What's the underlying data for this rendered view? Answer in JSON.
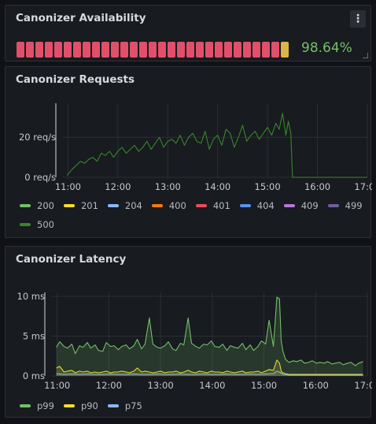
{
  "availability": {
    "title": "Canonizer Availability",
    "value_text": "98.64%",
    "value_color": "#73bf69",
    "segments_red": 28,
    "segments_yellow": 1,
    "red_color": "#e0506a",
    "yellow_color": "#d9b648",
    "menu_icon": "kebab-icon"
  },
  "requests": {
    "title": "Canonizer Requests",
    "legend": [
      {
        "label": "200",
        "color": "#73bf69"
      },
      {
        "label": "201",
        "color": "#fade2a"
      },
      {
        "label": "204",
        "color": "#8ab8ff"
      },
      {
        "label": "400",
        "color": "#ff780a"
      },
      {
        "label": "401",
        "color": "#f2495c"
      },
      {
        "label": "404",
        "color": "#5794f2"
      },
      {
        "label": "409",
        "color": "#b877d9"
      },
      {
        "label": "499",
        "color": "#705da0"
      },
      {
        "label": "500",
        "color": "#37872d"
      }
    ]
  },
  "latency": {
    "title": "Canonizer Latency",
    "legend": [
      {
        "label": "p99",
        "color": "#73bf69"
      },
      {
        "label": "p90",
        "color": "#fade2a"
      },
      {
        "label": "p75",
        "color": "#8ab8ff"
      }
    ]
  },
  "chart_data": [
    {
      "type": "line",
      "x_ticks": [
        "11:00",
        "12:00",
        "13:00",
        "14:00",
        "15:00",
        "16:00",
        "17:00"
      ],
      "y_ticks": [
        "0 req/s",
        "20 req/s"
      ],
      "xlim": [
        "10:53",
        "17:00"
      ],
      "ylim": [
        0,
        37
      ],
      "series": [
        {
          "name": "500",
          "color": "#37872d",
          "x": [
            "10:59",
            "11:05",
            "11:10",
            "11:15",
            "11:20",
            "11:25",
            "11:30",
            "11:35",
            "11:40",
            "11:45",
            "11:50",
            "11:55",
            "12:00",
            "12:05",
            "12:10",
            "12:15",
            "12:20",
            "12:25",
            "12:30",
            "12:35",
            "12:40",
            "12:45",
            "12:50",
            "12:55",
            "13:00",
            "13:05",
            "13:10",
            "13:15",
            "13:20",
            "13:25",
            "13:30",
            "13:35",
            "13:40",
            "13:45",
            "13:50",
            "13:55",
            "14:00",
            "14:05",
            "14:10",
            "14:15",
            "14:20",
            "14:25",
            "14:30",
            "14:35",
            "14:40",
            "14:45",
            "14:50",
            "14:55",
            "15:00",
            "15:05",
            "15:10",
            "15:14",
            "15:18",
            "15:22",
            "15:25",
            "15:28",
            "15:30",
            "16:00",
            "17:00"
          ],
          "y": [
            1,
            4,
            6,
            8,
            7,
            9,
            10,
            8,
            12,
            11,
            13,
            10,
            13,
            15,
            12,
            14,
            16,
            13,
            15,
            18,
            14,
            17,
            20,
            15,
            18,
            19,
            17,
            21,
            16,
            20,
            22,
            18,
            17,
            23,
            14,
            19,
            21,
            16,
            24,
            22,
            15,
            20,
            26,
            18,
            21,
            23,
            19,
            22,
            25,
            21,
            27,
            24,
            32,
            21,
            28,
            22,
            0,
            0,
            0
          ]
        }
      ]
    },
    {
      "type": "area",
      "x_ticks": [
        "11:00",
        "12:00",
        "13:00",
        "14:00",
        "15:00",
        "16:00",
        "17:00"
      ],
      "y_ticks": [
        "0 ms",
        "5 ms",
        "10 ms"
      ],
      "xlim": [
        "10:53",
        "17:00"
      ],
      "ylim": [
        0,
        10.5
      ],
      "series": [
        {
          "name": "p99",
          "color": "#73bf69",
          "x": [
            "10:59",
            "11:03",
            "11:08",
            "11:12",
            "11:17",
            "11:21",
            "11:26",
            "11:30",
            "11:35",
            "11:39",
            "11:44",
            "11:48",
            "11:53",
            "11:57",
            "12:02",
            "12:06",
            "12:11",
            "12:15",
            "12:20",
            "12:24",
            "12:29",
            "12:33",
            "12:38",
            "12:42",
            "12:47",
            "12:51",
            "12:56",
            "13:00",
            "13:05",
            "13:09",
            "13:14",
            "13:18",
            "13:23",
            "13:27",
            "13:32",
            "13:36",
            "13:41",
            "13:45",
            "13:50",
            "13:54",
            "13:59",
            "14:03",
            "14:08",
            "14:12",
            "14:17",
            "14:21",
            "14:26",
            "14:30",
            "14:35",
            "14:39",
            "14:44",
            "14:48",
            "14:53",
            "14:57",
            "15:02",
            "15:06",
            "15:11",
            "15:15",
            "15:18",
            "15:20",
            "15:22",
            "15:25",
            "15:29",
            "15:34",
            "15:38",
            "15:43",
            "15:47",
            "15:52",
            "15:56",
            "16:01",
            "16:05",
            "16:10",
            "16:14",
            "16:19",
            "16:23",
            "16:28",
            "16:32",
            "16:37",
            "16:41",
            "16:46",
            "16:50",
            "16:55"
          ],
          "y": [
            3.6,
            4.3,
            3.7,
            3.5,
            4.0,
            2.8,
            3.8,
            3.6,
            4.2,
            3.5,
            3.9,
            3.2,
            3.1,
            4.2,
            3.7,
            3.8,
            3.3,
            3.7,
            3.9,
            3.4,
            3.8,
            4.6,
            3.4,
            4.0,
            7.3,
            4.0,
            3.6,
            3.5,
            3.8,
            4.3,
            3.4,
            3.2,
            4.1,
            3.9,
            7.3,
            4.1,
            3.7,
            3.5,
            4.0,
            3.9,
            4.4,
            3.7,
            3.6,
            4.0,
            3.2,
            3.8,
            3.6,
            3.5,
            4.1,
            3.3,
            3.9,
            3.2,
            3.7,
            4.4,
            4.0,
            7.0,
            3.7,
            9.9,
            9.7,
            4.4,
            3.1,
            2.1,
            1.7,
            1.9,
            1.8,
            2.0,
            1.6,
            1.7,
            1.9,
            1.6,
            1.7,
            1.6,
            1.8,
            1.5,
            1.6,
            1.7,
            1.4,
            1.6,
            1.7,
            1.3,
            1.6,
            1.8
          ]
        },
        {
          "name": "p90",
          "color": "#fade2a",
          "x": [
            "10:59",
            "11:03",
            "11:08",
            "11:12",
            "11:17",
            "11:21",
            "11:26",
            "11:30",
            "11:35",
            "11:39",
            "11:44",
            "11:48",
            "11:53",
            "11:57",
            "12:02",
            "12:06",
            "12:11",
            "12:15",
            "12:20",
            "12:24",
            "12:29",
            "12:33",
            "12:38",
            "12:42",
            "12:47",
            "12:51",
            "12:56",
            "13:00",
            "13:05",
            "13:09",
            "13:14",
            "13:18",
            "13:23",
            "13:27",
            "13:32",
            "13:36",
            "13:41",
            "13:45",
            "13:50",
            "13:54",
            "13:59",
            "14:03",
            "14:08",
            "14:12",
            "14:17",
            "14:21",
            "14:26",
            "14:30",
            "14:35",
            "14:39",
            "14:44",
            "14:48",
            "14:53",
            "14:57",
            "15:02",
            "15:06",
            "15:11",
            "15:15",
            "15:18",
            "15:20",
            "15:22",
            "15:25",
            "15:29",
            "15:34",
            "15:38",
            "15:43",
            "15:47",
            "15:52",
            "15:56",
            "16:01",
            "16:05",
            "16:10",
            "16:14",
            "16:19",
            "16:23",
            "16:28",
            "16:32",
            "16:37",
            "16:41",
            "16:46",
            "16:50",
            "16:55"
          ],
          "y": [
            1.0,
            1.2,
            0.5,
            0.6,
            0.7,
            0.4,
            0.6,
            0.5,
            0.6,
            0.4,
            0.5,
            0.4,
            0.5,
            0.6,
            0.4,
            0.5,
            0.5,
            0.6,
            0.5,
            0.4,
            0.6,
            1.0,
            0.5,
            0.6,
            0.5,
            0.4,
            0.5,
            0.6,
            0.4,
            0.5,
            0.5,
            0.6,
            0.4,
            0.5,
            0.7,
            0.5,
            0.4,
            0.6,
            0.5,
            0.4,
            0.6,
            0.5,
            0.5,
            0.4,
            0.6,
            0.5,
            0.4,
            0.5,
            0.6,
            0.4,
            0.5,
            0.5,
            0.6,
            0.4,
            0.6,
            0.8,
            0.7,
            2.0,
            1.6,
            0.6,
            0.4,
            0.3,
            0.2,
            0.2,
            0.2,
            0.2,
            0.2,
            0.2,
            0.2,
            0.2,
            0.2,
            0.2,
            0.2,
            0.2,
            0.2,
            0.2,
            0.2,
            0.2,
            0.2,
            0.2,
            0.2,
            0.2
          ]
        },
        {
          "name": "p75",
          "color": "#8ab8ff",
          "x": [
            "10:59",
            "11:08",
            "11:17",
            "11:26",
            "11:35",
            "11:44",
            "11:53",
            "12:02",
            "12:11",
            "12:20",
            "12:29",
            "12:38",
            "12:47",
            "12:56",
            "13:05",
            "13:14",
            "13:23",
            "13:32",
            "13:41",
            "13:50",
            "13:59",
            "14:08",
            "14:17",
            "14:26",
            "14:35",
            "14:44",
            "14:53",
            "15:02",
            "15:11",
            "15:15",
            "15:18",
            "15:22",
            "15:29",
            "15:38",
            "15:47",
            "15:56",
            "16:05",
            "16:14",
            "16:23",
            "16:32",
            "16:41",
            "16:50",
            "16:55"
          ],
          "y": [
            0.3,
            0.2,
            0.25,
            0.2,
            0.25,
            0.2,
            0.2,
            0.25,
            0.2,
            0.2,
            0.25,
            0.2,
            0.2,
            0.25,
            0.2,
            0.2,
            0.25,
            0.2,
            0.2,
            0.25,
            0.2,
            0.2,
            0.25,
            0.2,
            0.2,
            0.25,
            0.2,
            0.25,
            0.3,
            0.6,
            0.5,
            0.2,
            0.1,
            0.1,
            0.1,
            0.1,
            0.1,
            0.1,
            0.1,
            0.1,
            0.1,
            0.1,
            0.1
          ]
        }
      ]
    }
  ]
}
